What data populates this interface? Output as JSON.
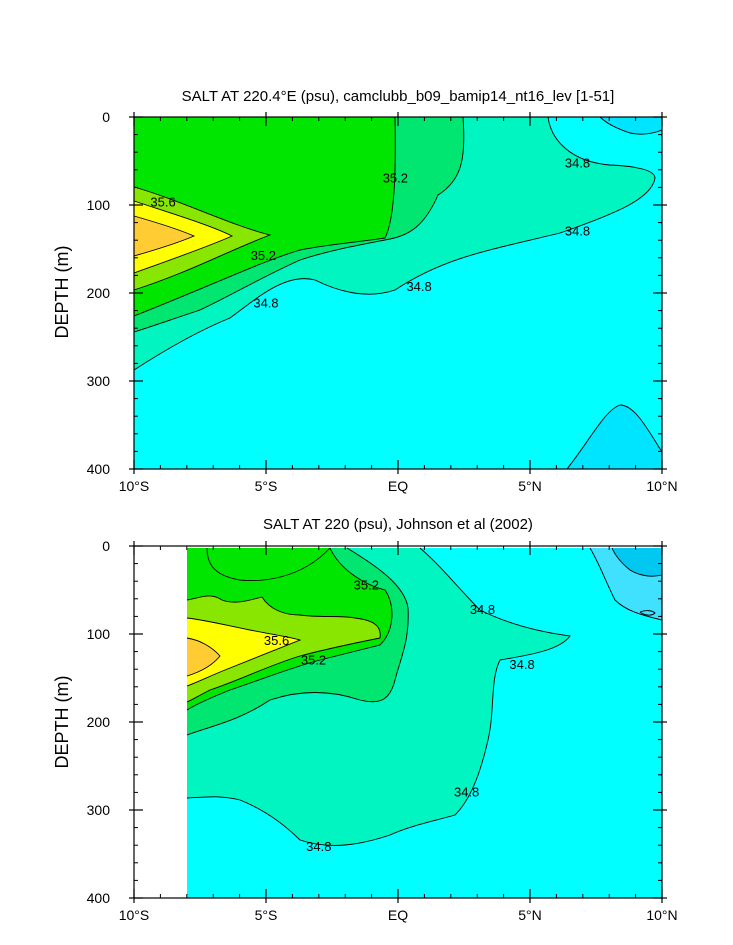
{
  "chart_data": [
    {
      "type": "contour",
      "title": "SALT AT 220.4°E (psu), camclubb_b09_bamip14_nt16_lev [1-51]",
      "ylabel": "DEPTH (m)",
      "xlim": [
        -10,
        10
      ],
      "ylim": [
        0,
        400
      ],
      "y_reversed": true,
      "x_ticks": [
        -10,
        -5,
        0,
        5,
        10
      ],
      "x_tick_labels": [
        "10°S",
        "5°S",
        "EQ",
        "5°N",
        "10°N"
      ],
      "y_ticks": [
        0,
        100,
        200,
        300,
        400
      ],
      "y_tick_labels": [
        "0",
        "100",
        "200",
        "300",
        "400"
      ],
      "contour_labels": [
        {
          "text": "35.6",
          "lat": -8.9,
          "depth": 97
        },
        {
          "text": "35.2",
          "lat": -0.1,
          "depth": 70
        },
        {
          "text": "35.2",
          "lat": -5.1,
          "depth": 158
        },
        {
          "text": "34.8",
          "lat": -5.0,
          "depth": 212
        },
        {
          "text": "34.8",
          "lat": 0.8,
          "depth": 193
        },
        {
          "text": "34.8",
          "lat": 6.8,
          "depth": 53
        },
        {
          "text": "34.8",
          "lat": 6.8,
          "depth": 130
        }
      ],
      "filled_levels": [
        "<34.6",
        "34.6-34.8",
        "34.8-35.0",
        "35.0-35.2",
        "35.2-35.4",
        "35.4-35.6",
        "35.6-35.8",
        ">35.8"
      ],
      "fill_colors": [
        "#00e5ff",
        "#00ffff",
        "#00f5c0",
        "#00e670",
        "#00e600",
        "#88e600",
        "#ffff00",
        "#ffcc33"
      ]
    },
    {
      "type": "contour",
      "title": "SALT AT 220 (psu), Johnson et al (2002)",
      "ylabel": "DEPTH (m)",
      "xlim": [
        -10,
        10
      ],
      "ylim": [
        0,
        400
      ],
      "y_reversed": true,
      "data_lat_min": -8,
      "x_ticks": [
        -10,
        -5,
        0,
        5,
        10
      ],
      "x_tick_labels": [
        "10°S",
        "5°S",
        "EQ",
        "5°N",
        "10°N"
      ],
      "y_ticks": [
        0,
        100,
        200,
        300,
        400
      ],
      "y_tick_labels": [
        "0",
        "100",
        "200",
        "300",
        "400"
      ],
      "contour_labels": [
        {
          "text": "35.2",
          "lat": -1.2,
          "depth": 45
        },
        {
          "text": "35.6",
          "lat": -4.6,
          "depth": 108
        },
        {
          "text": "35.2",
          "lat": -3.2,
          "depth": 130
        },
        {
          "text": "34.8",
          "lat": 3.2,
          "depth": 73
        },
        {
          "text": "34.8",
          "lat": 4.7,
          "depth": 135
        },
        {
          "text": "34.8",
          "lat": 2.6,
          "depth": 280
        },
        {
          "text": "34.8",
          "lat": -3.0,
          "depth": 342
        }
      ],
      "filled_levels": [
        "<34.2",
        "34.2-34.4",
        "34.4-34.6",
        "34.6-34.8",
        "34.8-35.0",
        "35.0-35.2",
        "35.2-35.4",
        "35.4-35.6",
        "35.6-35.8",
        ">35.8"
      ],
      "fill_colors": [
        "#00c8f0",
        "#40e0ff",
        "#00ffff",
        "#00ffff",
        "#00f5c0",
        "#00e670",
        "#00e600",
        "#88e600",
        "#ffff00",
        "#ffcc33"
      ]
    }
  ]
}
